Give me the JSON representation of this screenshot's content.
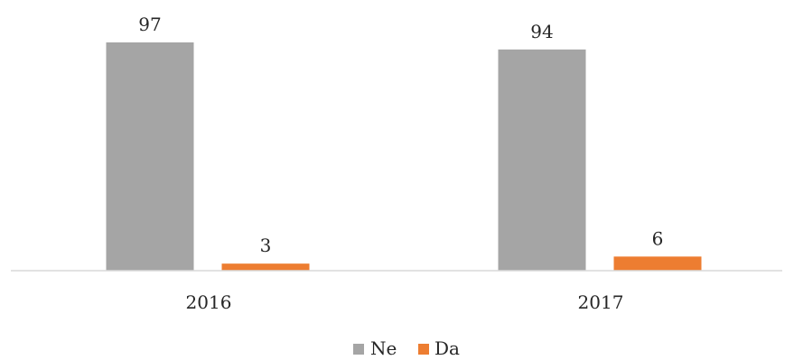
{
  "chart_data": {
    "type": "bar",
    "categories": [
      "2016",
      "2017"
    ],
    "series": [
      {
        "name": "Ne",
        "values": [
          97,
          94
        ],
        "color": "#A5A5A5"
      },
      {
        "name": "Da",
        "values": [
          3,
          6
        ],
        "color": "#ED7D31"
      }
    ],
    "ylim": [
      0,
      97
    ],
    "grid": false,
    "legend_position": "bottom",
    "data_labels": true,
    "axis_color": "#D9D9D9"
  }
}
